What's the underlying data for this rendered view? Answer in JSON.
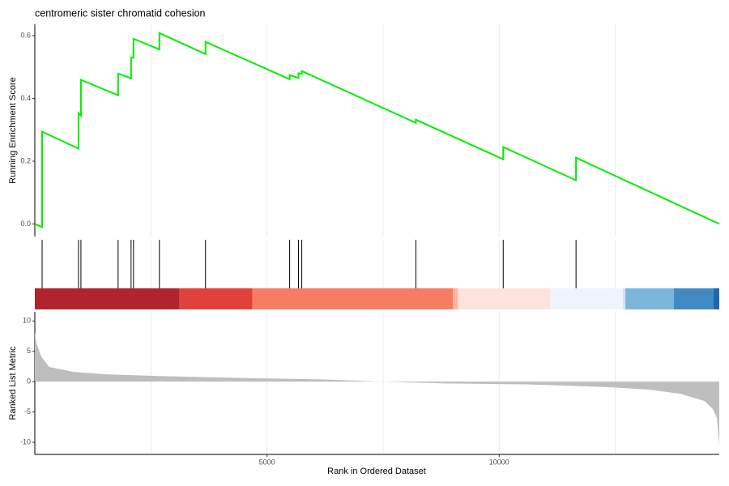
{
  "chart_data": [
    {
      "type": "line",
      "title": "centromeric sister chromatid cohesion",
      "ylabel": "Running Enrichment Score",
      "xlim": [
        0,
        14740
      ],
      "ylim": [
        -0.04,
        0.636
      ],
      "yticks": [
        {
          "value": 0,
          "label": "0.0"
        },
        {
          "value": 0.2,
          "label": "0.2"
        },
        {
          "value": 0.4,
          "label": "0.4"
        },
        {
          "value": 0.6,
          "label": "0.6"
        }
      ],
      "x_grid": [
        2500,
        5000,
        7500,
        10000,
        12500
      ],
      "color": "#00ee00",
      "x": [
        0,
        157,
        157,
        941,
        941,
        993,
        993,
        1794,
        1794,
        2073,
        2073,
        2125,
        2125,
        2683,
        2683,
        3676,
        3676,
        5488,
        5488,
        5679,
        5679,
        5749,
        5749,
        8206,
        8206,
        10087,
        10087,
        11655,
        11655,
        14740
      ],
      "values": [
        0,
        -0.01,
        0.294,
        0.24,
        0.353,
        0.345,
        0.459,
        0.41,
        0.479,
        0.464,
        0.531,
        0.529,
        0.59,
        0.556,
        0.608,
        0.541,
        0.58,
        0.461,
        0.474,
        0.465,
        0.48,
        0.478,
        0.487,
        0.322,
        0.332,
        0.206,
        0.245,
        0.139,
        0.211,
        0
      ]
    },
    {
      "type": "rug",
      "xlim": [
        0,
        14740
      ],
      "x_grid": [
        2500,
        5000,
        7500,
        10000,
        12500
      ],
      "hits": [
        157,
        941,
        993,
        1794,
        2073,
        2125,
        2683,
        3676,
        5488,
        5679,
        5749,
        8206,
        10087,
        11655
      ],
      "hit_color": "#000000",
      "band_edges": [
        0,
        3118,
        4686,
        9007,
        9111,
        11098,
        12666,
        12718,
        13763,
        14617,
        14740
      ],
      "band_colors": [
        "#b2242b",
        "#e0413b",
        "#f67c62",
        "#fbb59b",
        "#fde3d9",
        "#eef3fc",
        "#cfe2f0",
        "#7bb6da",
        "#4189c2",
        "#2166ac"
      ]
    },
    {
      "type": "area",
      "xlabel": "Rank in Ordered Dataset",
      "ylabel": "Ranked List Metric",
      "xlim": [
        0,
        14740
      ],
      "ylim": [
        -12,
        11.5
      ],
      "yticks": [
        -10,
        -5,
        0,
        5,
        10
      ],
      "xticks": [
        5000,
        10000
      ],
      "x_grid": [
        2500,
        5000,
        7500,
        10000,
        12500
      ],
      "color": "#bebebe",
      "x": [
        0,
        40,
        140,
        314,
        836,
        1533,
        2753,
        4495,
        6237,
        7456,
        8850,
        10592,
        12334,
        13206,
        13902,
        14425,
        14599,
        14690,
        14740
      ],
      "values": [
        8.1,
        6.2,
        4.1,
        2.4,
        1.6,
        1.2,
        0.9,
        0.6,
        0.35,
        0,
        -0.3,
        -0.45,
        -0.9,
        -1.3,
        -2,
        -3.2,
        -4.5,
        -6,
        -10.7
      ]
    }
  ]
}
